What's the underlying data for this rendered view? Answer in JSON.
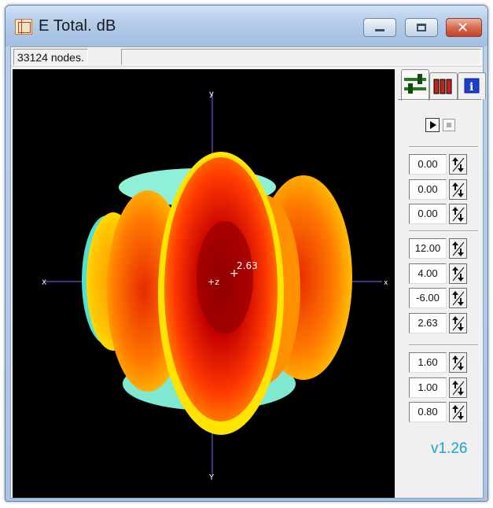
{
  "window": {
    "title": "E Total. dB",
    "icon": "cube-grid-icon",
    "controls": [
      "minimize-icon",
      "maximize-icon",
      "close-icon"
    ]
  },
  "status": {
    "nodes": "33124 nodes."
  },
  "plot": {
    "point_label": "2.63",
    "axis_labels": {
      "top": "y",
      "bottom": "Y",
      "left": "X",
      "right": "x",
      "center": "+z"
    },
    "colors": {
      "background": "#000000",
      "hot": "#c40000",
      "mid": "#ff7a00",
      "warm": "#ffe600",
      "cool": "#4fe0d6",
      "axis": "#6f6fff"
    }
  },
  "tabs": [
    {
      "name": "sliders-icon",
      "active": true
    },
    {
      "name": "bars-chart-icon",
      "active": false
    },
    {
      "name": "info-icon",
      "active": false
    }
  ],
  "playback": {
    "play": "play-icon",
    "stop": "stop-icon"
  },
  "fields": {
    "group1": [
      "0.00",
      "0.00",
      "0.00"
    ],
    "group2": [
      "12.00",
      "4.00",
      "-6.00",
      "2.63"
    ],
    "group3": [
      "1.60",
      "1.00",
      "0.80"
    ]
  },
  "version": "v1.26"
}
